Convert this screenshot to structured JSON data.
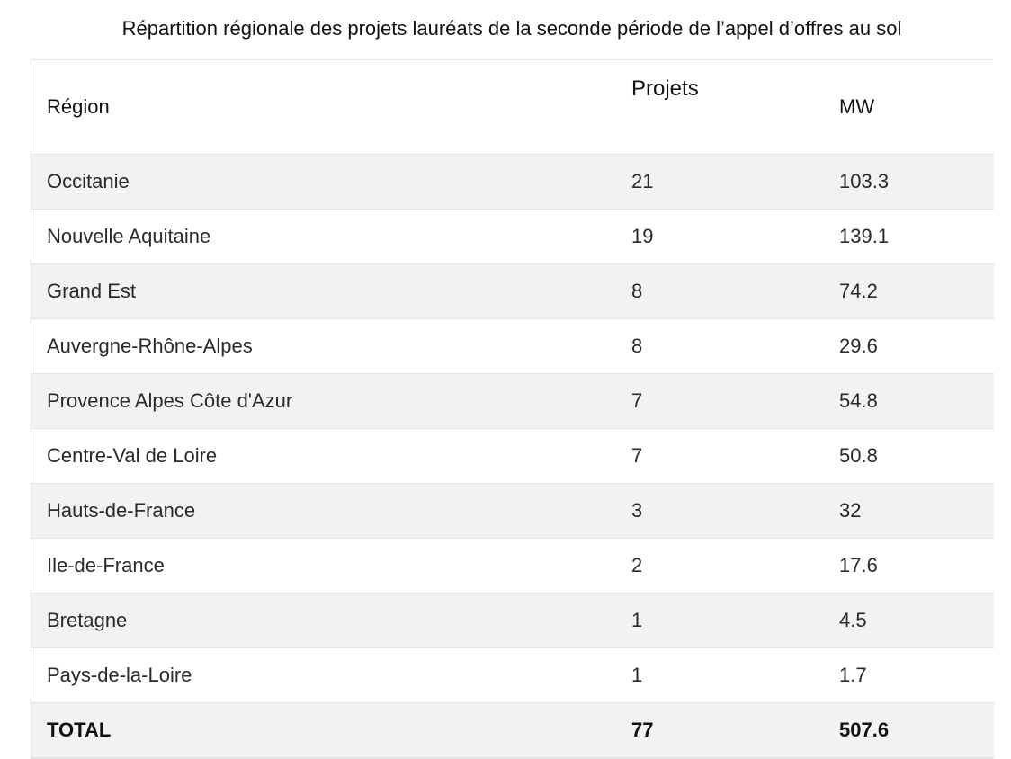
{
  "title": "Répartition régionale des projets lauréats de la seconde période de l’appel d’offres au sol",
  "table": {
    "headers": [
      "Région",
      "Projets",
      "MW"
    ],
    "rows": [
      {
        "region": "Occitanie",
        "projets": "21",
        "mw": "103.3"
      },
      {
        "region": "Nouvelle Aquitaine",
        "projets": "19",
        "mw": "139.1"
      },
      {
        "region": "Grand Est",
        "projets": "8",
        "mw": "74.2"
      },
      {
        "region": "Auvergne-Rhône-Alpes",
        "projets": "8",
        "mw": "29.6"
      },
      {
        "region": "Provence Alpes Côte d'Azur",
        "projets": "7",
        "mw": "54.8"
      },
      {
        "region": "Centre-Val de Loire",
        "projets": "7",
        "mw": "50.8"
      },
      {
        "region": "Hauts-de-France",
        "projets": "3",
        "mw": "32"
      },
      {
        "region": "Ile-de-France",
        "projets": "2",
        "mw": "17.6"
      },
      {
        "region": "Bretagne",
        "projets": "1",
        "mw": "4.5"
      },
      {
        "region": "Pays-de-la-Loire",
        "projets": "1",
        "mw": "1.7"
      }
    ],
    "total": {
      "label": "TOTAL",
      "projets": "77",
      "mw": "507.6"
    }
  },
  "colors": {
    "stripe": "#f2f2f2",
    "border": "#e2e2e2",
    "text": "#222222"
  }
}
